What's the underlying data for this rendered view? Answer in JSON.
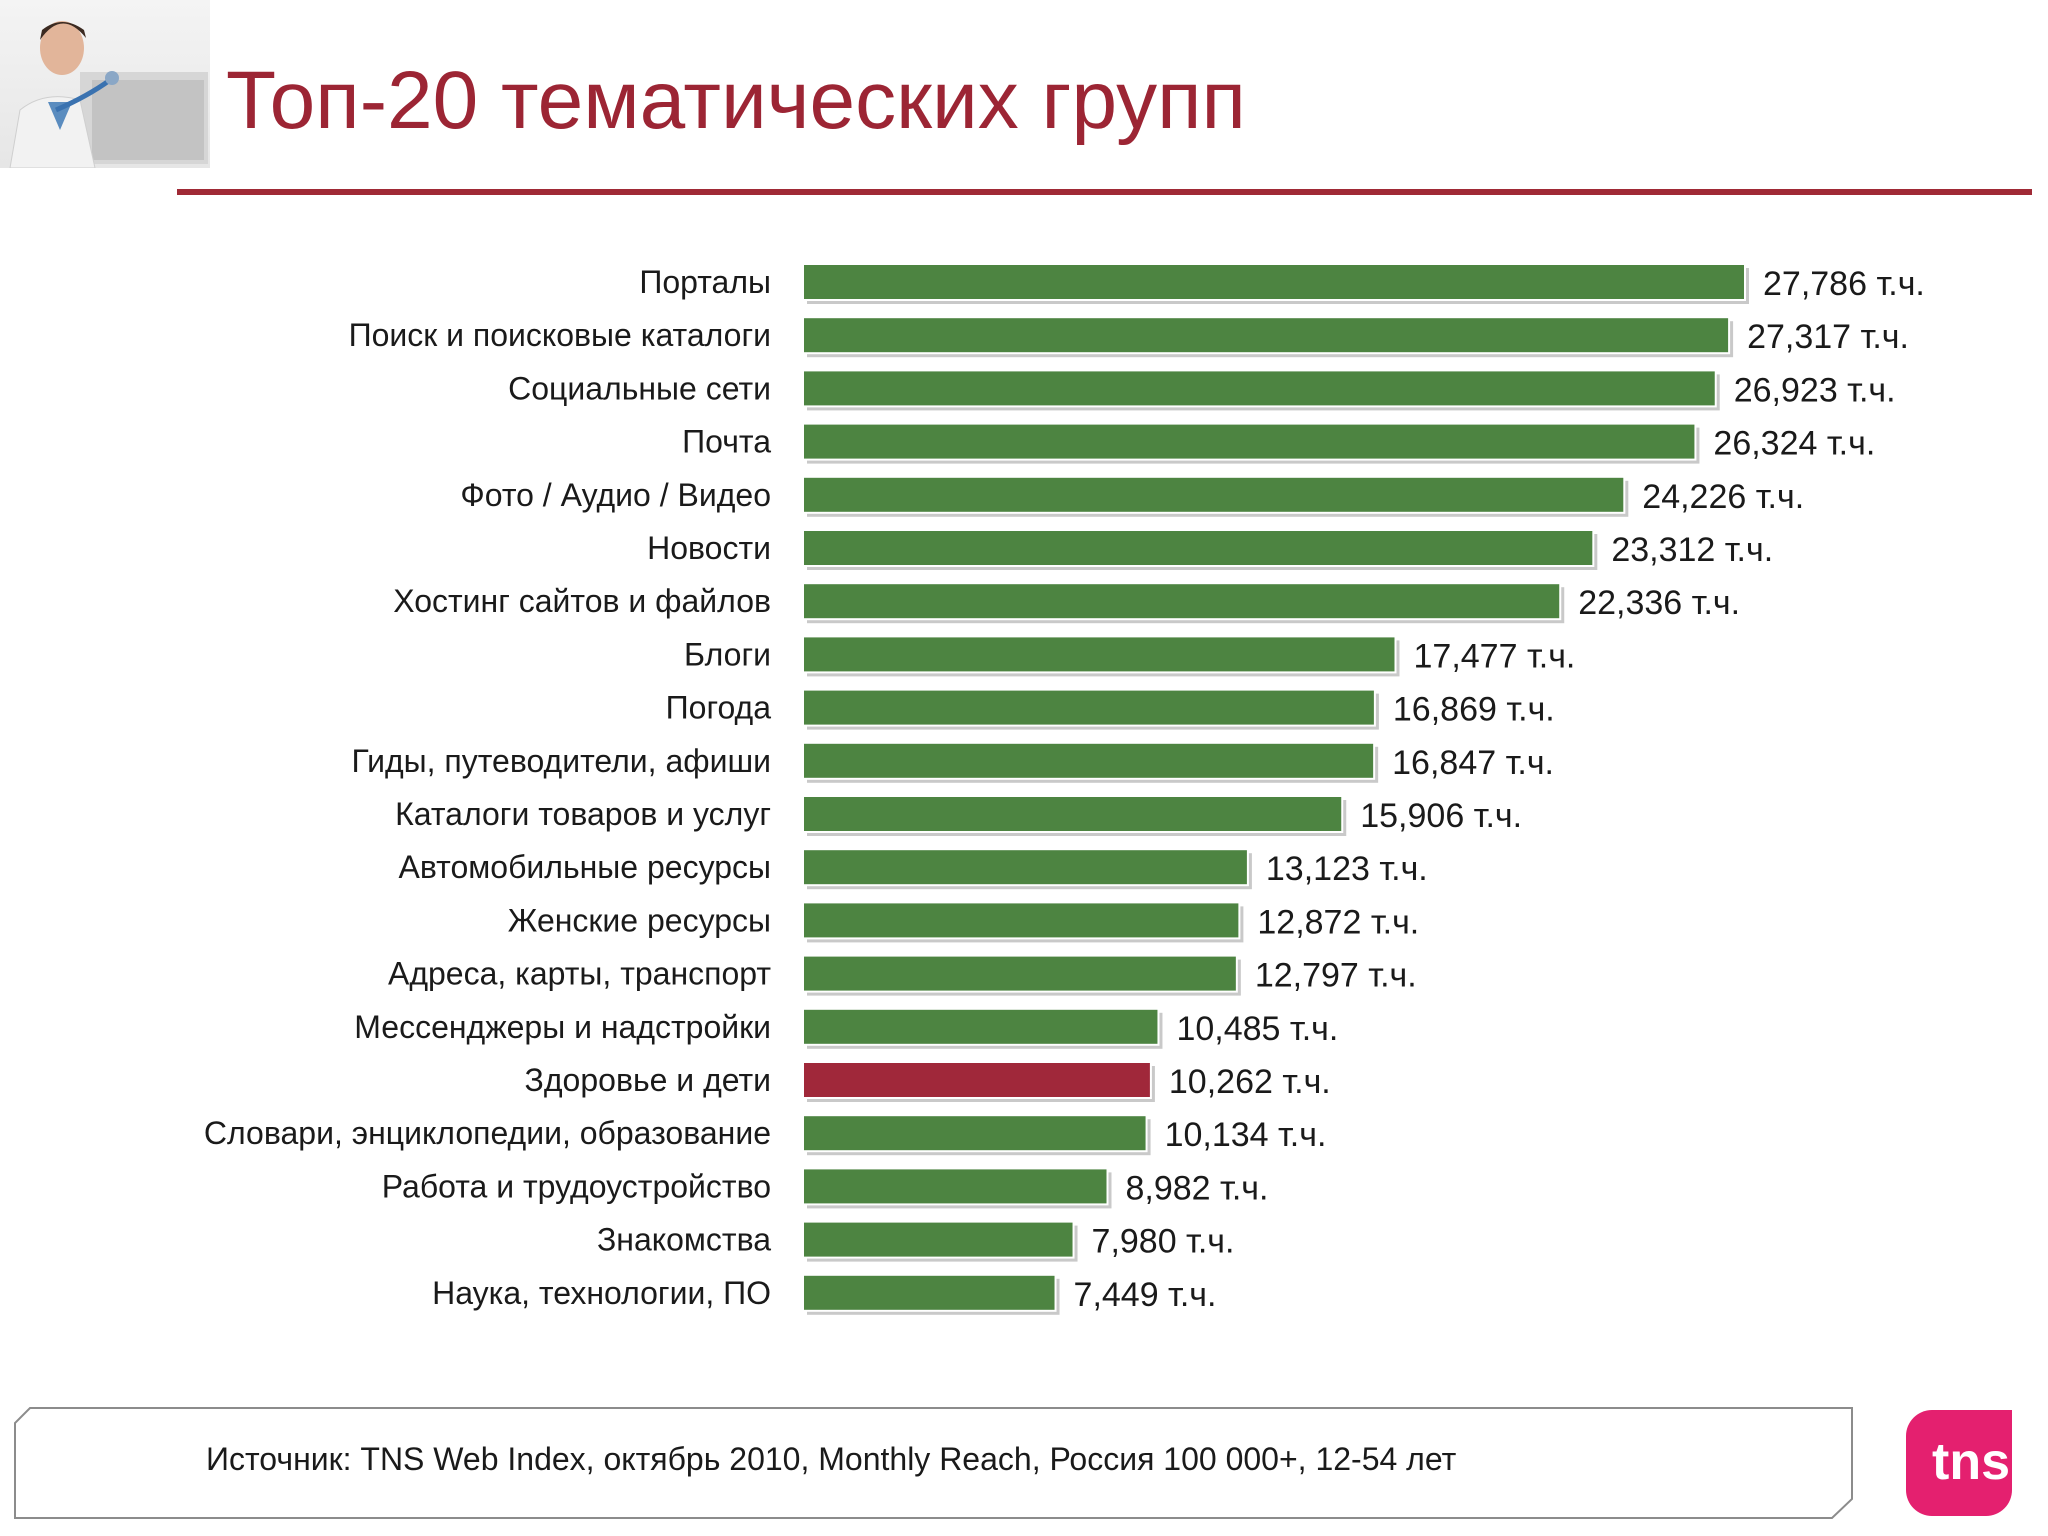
{
  "header": {
    "title": "Топ-20 тематических групп"
  },
  "footer": {
    "source": "Источник: TNS Web Index, октябрь 2010, Monthly Reach, Россия 100 000+, 12-54 лет",
    "logo_text": "tns"
  },
  "colors": {
    "title": "#9c2534",
    "rule": "#a02a36",
    "bar": "#4d8441",
    "bar_highlight": "#a0283a",
    "logo": "#e4206f"
  },
  "chart_data": {
    "type": "bar",
    "orientation": "horizontal",
    "title": "Топ-20 тематических групп",
    "xlabel": "",
    "ylabel": "",
    "unit": "т.ч.",
    "grid": false,
    "legend": "none",
    "xlim": [
      0,
      30000
    ],
    "highlight_index": 15,
    "categories": [
      "Порталы",
      "Поиск и поисковые каталоги",
      "Социальные сети",
      "Почта",
      "Фото / Аудио / Видео",
      "Новости",
      "Хостинг сайтов и файлов",
      "Блоги",
      "Погода",
      "Гиды, путеводители, афиши",
      "Каталоги товаров и услуг",
      "Автомобильные ресурсы",
      "Женские ресурсы",
      "Адреса, карты, транспорт",
      "Мессенджеры и надстройки",
      "Здоровье и дети",
      "Словари, энциклопедии, образование",
      "Работа и трудоустройство",
      "Знакомства",
      "Наука, технологии, ПО"
    ],
    "values": [
      27786,
      27317,
      26923,
      26324,
      24226,
      23312,
      22336,
      17477,
      16869,
      16847,
      15906,
      13123,
      12872,
      12797,
      10485,
      10262,
      10134,
      8982,
      7980,
      7449
    ],
    "value_labels": [
      "27,786 т.ч.",
      "27,317 т.ч.",
      "26,923 т.ч.",
      "26,324 т.ч.",
      "24,226 т.ч.",
      "23,312 т.ч.",
      "22,336 т.ч.",
      "17,477 т.ч.",
      "16,869 т.ч.",
      "16,847 т.ч.",
      "15,906 т.ч.",
      "13,123 т.ч.",
      "12,872 т.ч.",
      "12,797 т.ч.",
      "10,485 т.ч.",
      "10,262 т.ч.",
      "10,134 т.ч.",
      "8,982 т.ч.",
      "7,980 т.ч.",
      "7,449 т.ч."
    ]
  }
}
